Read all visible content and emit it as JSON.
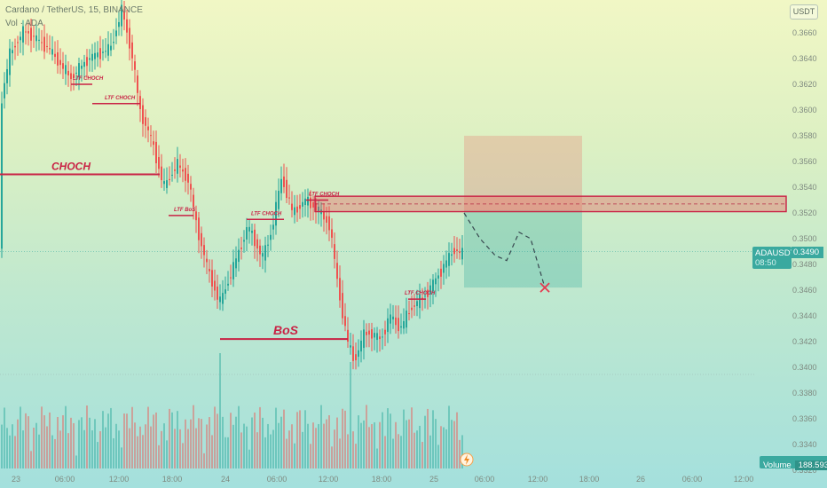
{
  "header": {
    "symbol_line": "Cardano / TetherUS, 15, BINANCE",
    "indicator_line": "Vol · ADA"
  },
  "currency_label": "USDT",
  "price_tag": {
    "symbol": "ADAUSDT",
    "price": "0.3490",
    "countdown": "08:50"
  },
  "volume_tag": {
    "label": "Volume",
    "value": "188.593 K"
  },
  "colors": {
    "up": "#26a69a",
    "down": "#ef5350",
    "annotation": "#c92245",
    "price_line": "#3aa99f"
  },
  "chart_data": {
    "type": "candlestick",
    "y_ticks": [
      "0.3660",
      "0.3640",
      "0.3620",
      "0.3600",
      "0.3580",
      "0.3560",
      "0.3540",
      "0.3520",
      "0.3500",
      "0.3480",
      "0.3460",
      "0.3440",
      "0.3420",
      "0.3400",
      "0.3380",
      "0.3360",
      "0.3340",
      "0.3320"
    ],
    "x_ticks": [
      "23",
      "06:00",
      "12:00",
      "18:00",
      "24",
      "06:00",
      "12:00",
      "18:00",
      "25",
      "06:00",
      "12:00",
      "18:00",
      "26",
      "06:00",
      "12:00"
    ],
    "ylim": [
      0.3313,
      0.3683
    ],
    "current_price": 0.349,
    "annotations": [
      {
        "text": "CHOCH",
        "price": 0.355
      },
      {
        "text": "LTF CHOCH",
        "price": 0.362
      },
      {
        "text": "LTF CHOCH",
        "price": 0.3605
      },
      {
        "text": "LTF BoS",
        "price": 0.3518
      },
      {
        "text": "LTF CHOCH",
        "price": 0.3515
      },
      {
        "text": "LTF CHOCH",
        "price": 0.353
      },
      {
        "text": "BoS",
        "price": 0.3422
      },
      {
        "text": "LTF CHOCH",
        "price": 0.3453
      }
    ],
    "zone": {
      "top": 0.3533,
      "bottom": 0.3521
    },
    "short_position": {
      "entry": 0.3522,
      "stop": 0.358,
      "target": 0.3462
    },
    "projection_prices": [
      0.352,
      0.35,
      0.3487,
      0.3483,
      0.3505,
      0.35,
      0.3462
    ]
  }
}
